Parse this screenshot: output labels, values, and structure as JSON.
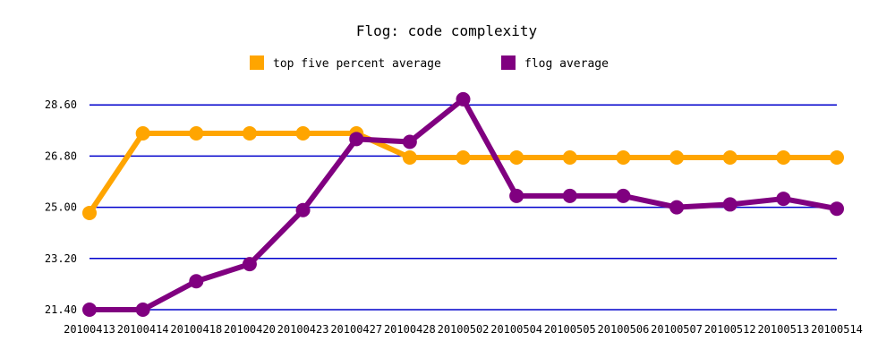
{
  "chart_data": {
    "type": "line",
    "title": "Flog: code complexity",
    "xlabel": "",
    "ylabel": "",
    "categories": [
      "20100413",
      "20100414",
      "20100418",
      "20100420",
      "20100423",
      "20100427",
      "20100428",
      "20100502",
      "20100504",
      "20100505",
      "20100506",
      "20100507",
      "20100512",
      "20100513",
      "20100514"
    ],
    "y_ticks": [
      "21.40",
      "23.20",
      "25.00",
      "26.80",
      "28.60"
    ],
    "ylim": [
      21.4,
      29.4
    ],
    "grid": true,
    "legend_position": "top-center",
    "series": [
      {
        "name": "top five percent average",
        "color": "#FFA500",
        "values": [
          24.8,
          27.6,
          27.6,
          27.6,
          27.6,
          27.6,
          26.75,
          26.75,
          26.75,
          26.75,
          26.75,
          26.75,
          26.75,
          26.75,
          26.75
        ]
      },
      {
        "name": "flog average",
        "color": "#800080",
        "values": [
          21.4,
          21.4,
          22.4,
          23.0,
          24.9,
          27.4,
          27.3,
          28.8,
          25.4,
          25.4,
          25.4,
          25.0,
          25.1,
          25.3,
          24.95
        ]
      }
    ],
    "grid_color": "#0000CC"
  }
}
